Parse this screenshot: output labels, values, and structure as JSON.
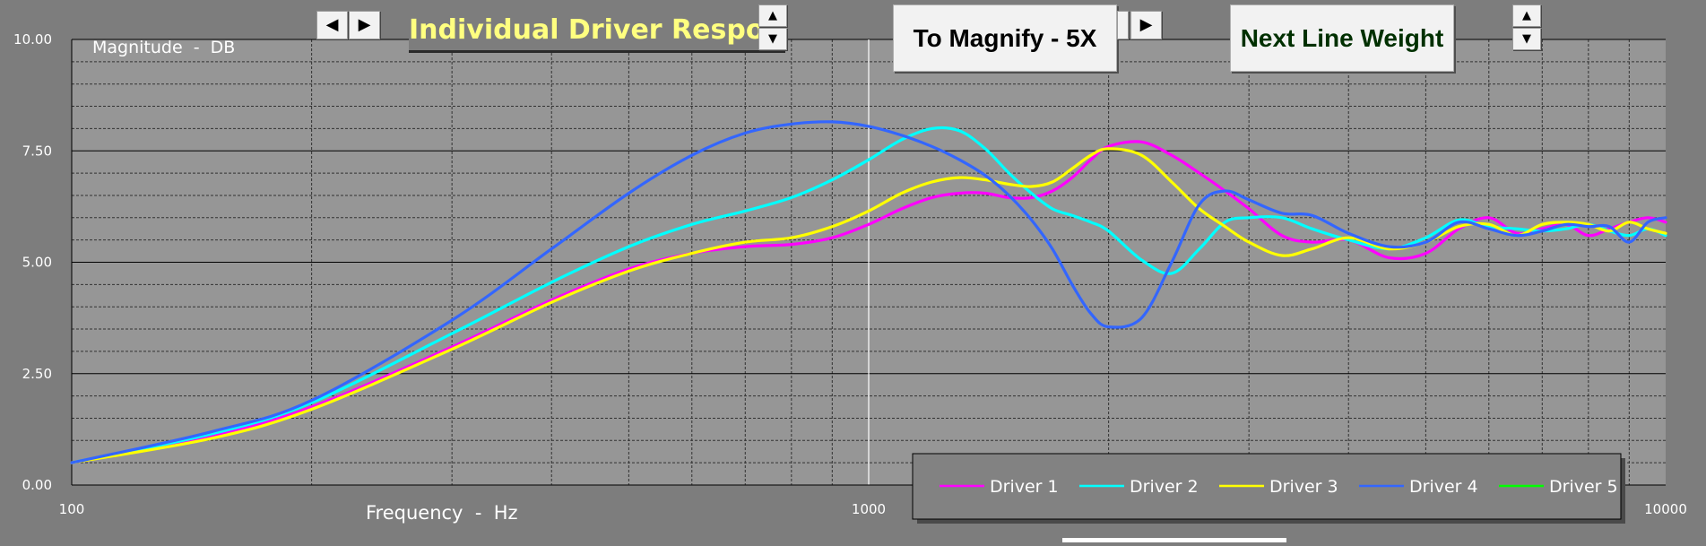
{
  "controls": {
    "title": "Individual Driver Response",
    "magnify_label": "To Magnify - 5X",
    "line_weight_label": "Next Line Weight",
    "left_arrow": "◀",
    "right_arrow": "▶",
    "up_arrow": "▲",
    "down_arrow": "▼"
  },
  "chart_data": {
    "type": "line",
    "ylabel": "Magnitude  -  DB",
    "xlabel": "Frequency  -  Hz",
    "x_scale": "log",
    "xlim": [
      100,
      10000
    ],
    "ylim": [
      0,
      10
    ],
    "x_ticks": [
      100,
      1000,
      10000
    ],
    "x_tick_labels": [
      "100",
      "1000",
      "10000"
    ],
    "y_ticks": [
      0,
      2.5,
      5,
      7.5,
      10
    ],
    "y_tick_labels": [
      "0.00",
      "2.50",
      "5.00",
      "7.50",
      "10.00"
    ],
    "grid": true,
    "legend_position": "bottom-right",
    "colors": {
      "plot_bg": "#969696",
      "outer_bg": "#7d7d7d",
      "major_grid": "#000000",
      "minor_grid": "#333333",
      "marker_line": "#ffffff",
      "legend_bg": "#828282"
    },
    "marker_x": 1000,
    "series": [
      {
        "name": "Driver 1",
        "color": "#ff00ff",
        "x": [
          100,
          150,
          200,
          300,
          400,
          500,
          600,
          700,
          800,
          900,
          1000,
          1100,
          1200,
          1300,
          1400,
          1500,
          1600,
          1700,
          1800,
          1900,
          2000,
          2200,
          2400,
          2600,
          2800,
          3000,
          3300,
          3600,
          4000,
          4500,
          5000,
          5500,
          6000,
          6500,
          7000,
          7500,
          8000,
          8500,
          9000,
          9500,
          10000
        ],
        "y": [
          0.5,
          1.1,
          1.75,
          3.1,
          4.15,
          4.85,
          5.2,
          5.35,
          5.4,
          5.55,
          5.85,
          6.2,
          6.45,
          6.55,
          6.55,
          6.45,
          6.45,
          6.6,
          6.9,
          7.3,
          7.6,
          7.7,
          7.4,
          7.0,
          6.6,
          6.2,
          5.6,
          5.45,
          5.5,
          5.1,
          5.2,
          5.75,
          6.0,
          5.65,
          5.75,
          5.85,
          5.6,
          5.75,
          5.9,
          6.0,
          5.9
        ]
      },
      {
        "name": "Driver 2",
        "color": "#00ffff",
        "x": [
          100,
          150,
          200,
          300,
          400,
          500,
          600,
          700,
          800,
          900,
          1000,
          1100,
          1200,
          1300,
          1400,
          1500,
          1600,
          1700,
          1800,
          1900,
          2000,
          2200,
          2400,
          2600,
          2800,
          3000,
          3300,
          3600,
          4000,
          4500,
          5000,
          5500,
          6000,
          6500,
          7000,
          7500,
          8000,
          8500,
          9000,
          9500,
          10000
        ],
        "y": [
          0.5,
          1.15,
          1.85,
          3.4,
          4.55,
          5.35,
          5.85,
          6.15,
          6.45,
          6.85,
          7.3,
          7.75,
          8.0,
          7.95,
          7.55,
          7.0,
          6.55,
          6.2,
          6.05,
          5.9,
          5.7,
          5.05,
          4.75,
          5.3,
          5.9,
          6.0,
          6.0,
          5.75,
          5.5,
          5.3,
          5.55,
          5.95,
          5.8,
          5.75,
          5.7,
          5.75,
          5.85,
          5.7,
          5.6,
          5.75,
          5.6
        ]
      },
      {
        "name": "Driver 3",
        "color": "#ffff00",
        "x": [
          100,
          150,
          200,
          300,
          400,
          500,
          600,
          700,
          800,
          900,
          1000,
          1100,
          1200,
          1300,
          1400,
          1500,
          1600,
          1700,
          1800,
          1900,
          2000,
          2200,
          2400,
          2600,
          2800,
          3000,
          3300,
          3600,
          4000,
          4500,
          5000,
          5500,
          6000,
          6500,
          7000,
          7500,
          8000,
          8500,
          9000,
          9500,
          10000
        ],
        "y": [
          0.5,
          1.05,
          1.7,
          3.05,
          4.1,
          4.8,
          5.2,
          5.45,
          5.55,
          5.8,
          6.15,
          6.55,
          6.8,
          6.9,
          6.85,
          6.75,
          6.7,
          6.8,
          7.1,
          7.4,
          7.55,
          7.4,
          6.8,
          6.2,
          5.8,
          5.45,
          5.15,
          5.3,
          5.55,
          5.3,
          5.45,
          5.8,
          5.85,
          5.6,
          5.85,
          5.9,
          5.85,
          5.7,
          5.9,
          5.75,
          5.65
        ]
      },
      {
        "name": "Driver 4",
        "color": "#3366ff",
        "x": [
          100,
          150,
          200,
          300,
          400,
          500,
          600,
          700,
          800,
          900,
          1000,
          1100,
          1200,
          1300,
          1400,
          1500,
          1600,
          1700,
          1800,
          1900,
          2000,
          2200,
          2400,
          2600,
          2800,
          3000,
          3300,
          3600,
          4000,
          4500,
          5000,
          5500,
          6000,
          6500,
          7000,
          7500,
          8000,
          8500,
          9000,
          9500,
          10000
        ],
        "y": [
          0.5,
          1.2,
          1.9,
          3.7,
          5.3,
          6.55,
          7.4,
          7.9,
          8.1,
          8.15,
          8.05,
          7.85,
          7.6,
          7.3,
          6.95,
          6.5,
          5.95,
          5.3,
          4.5,
          3.85,
          3.55,
          3.75,
          5.0,
          6.3,
          6.6,
          6.4,
          6.1,
          6.05,
          5.65,
          5.35,
          5.45,
          5.9,
          5.75,
          5.6,
          5.7,
          5.85,
          5.8,
          5.8,
          5.45,
          5.9,
          6.0
        ]
      },
      {
        "name": "Driver 5",
        "color": "#00ff00",
        "x": [],
        "y": []
      }
    ]
  }
}
